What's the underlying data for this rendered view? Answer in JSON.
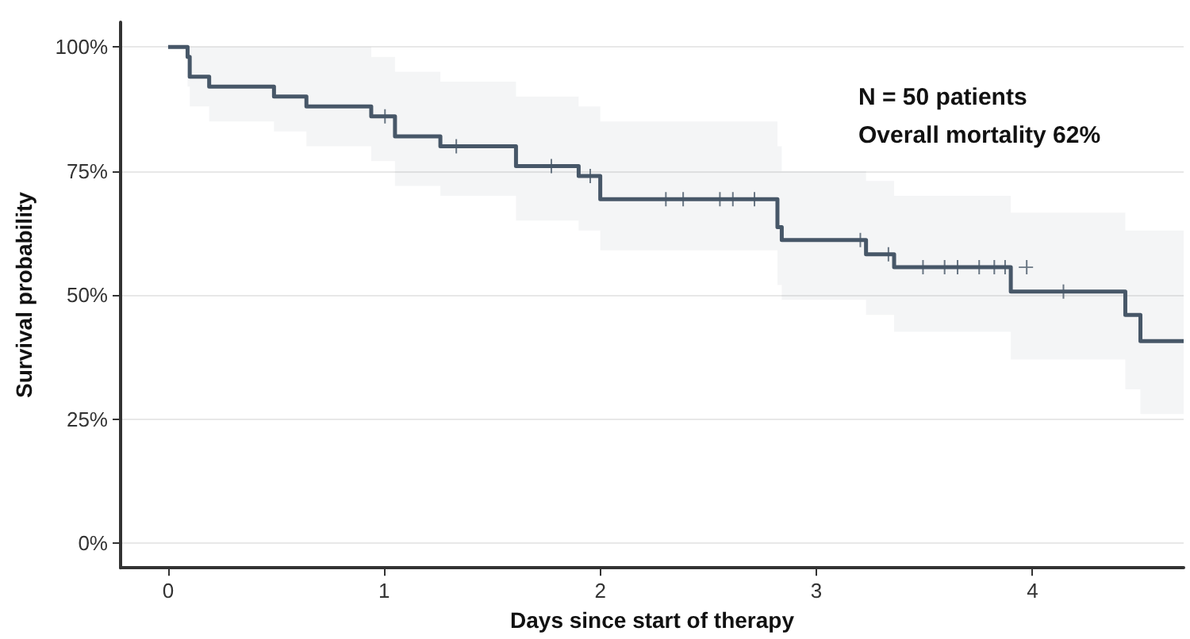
{
  "chart_data": {
    "type": "step",
    "xlabel": "Days since start of therapy",
    "ylabel": "Survival probability",
    "annotations": [
      "N = 50 patients",
      "Overall mortality 62%"
    ],
    "xlim": [
      -0.22,
      4.7
    ],
    "ylim": [
      -5,
      105
    ],
    "xticks": [
      0,
      1,
      2,
      3,
      4
    ],
    "yticks": [
      {
        "value": 0,
        "label": "0%"
      },
      {
        "value": 25,
        "label": "25%"
      },
      {
        "value": 50,
        "label": "50%"
      },
      {
        "value": 75,
        "label": "75%"
      },
      {
        "value": 100,
        "label": "100%"
      }
    ],
    "grid": "y",
    "series": [
      {
        "type": "step",
        "color": "#475768",
        "line_style": "solid",
        "x": [
          0,
          0.09,
          0.1,
          0.19,
          0.49,
          0.64,
          0.94,
          1.05,
          1.26,
          1.61,
          1.9,
          2.0,
          2.82,
          2.84,
          3.23,
          3.36,
          3.9,
          4.43,
          4.5,
          4.7
        ],
        "values": [
          100,
          98,
          94,
          92,
          90,
          88,
          86,
          82,
          80,
          76,
          74,
          69.3,
          63.7,
          61.1,
          58.2,
          55.6,
          50.7,
          46,
          40.7,
          40.7
        ],
        "lower": [
          100,
          92,
          88,
          85,
          83,
          80,
          77,
          72,
          70,
          65,
          63,
          59,
          52,
          49,
          46,
          42.6,
          37,
          31,
          26,
          26
        ],
        "upper": [
          100,
          100,
          100,
          100,
          100,
          100,
          98,
          95,
          93,
          90,
          88,
          85,
          80,
          75,
          73,
          70,
          66.6,
          63,
          63,
          63
        ]
      },
      {
        "type": "scatter",
        "color": "#475768",
        "marker": "cross",
        "x": [
          1.0,
          1.33,
          1.77,
          1.95,
          2.3,
          2.38,
          2.55,
          2.61,
          2.71,
          3.2,
          3.33,
          3.49,
          3.59,
          3.65,
          3.75,
          3.82,
          3.87,
          3.97,
          4.14
        ],
        "values": [
          86,
          80,
          76,
          74,
          69.3,
          69.3,
          69.3,
          69.3,
          69.3,
          61.1,
          58.2,
          55.6,
          55.6,
          55.6,
          55.6,
          55.6,
          55.6,
          55.6,
          50.7
        ]
      }
    ]
  }
}
